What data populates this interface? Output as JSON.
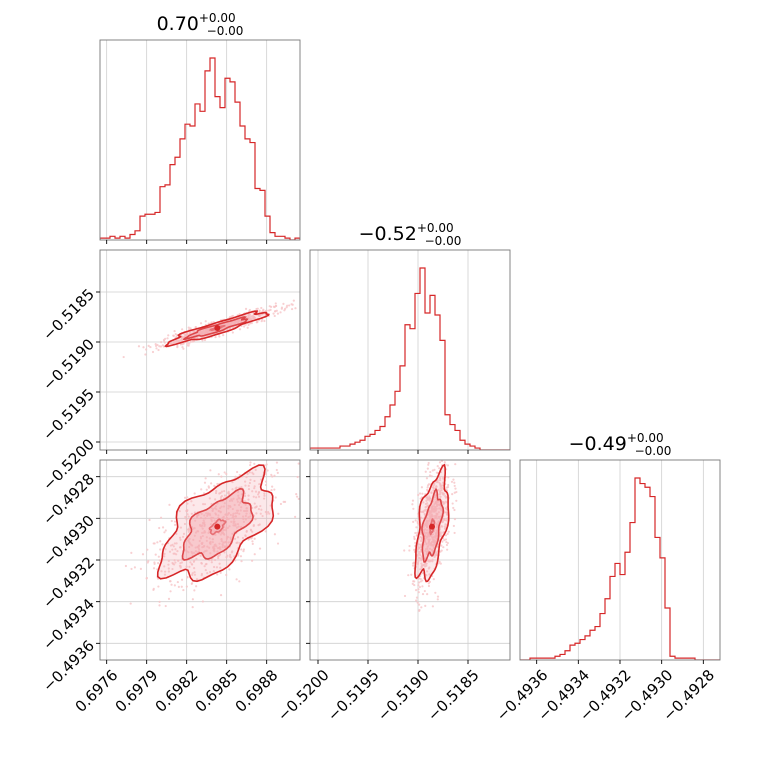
{
  "chart_data": {
    "type": "corner",
    "colors": {
      "series": "#d62728",
      "contour_fill": "#f3a5ab",
      "scatter": "#f6c4c7",
      "grid": "#cfcfcf",
      "frame": "#777777"
    },
    "grid": true,
    "parameters": [
      {
        "title": {
          "value": "0.70",
          "upper": "+0.00",
          "lower": "−0.00"
        },
        "range": [
          0.69755,
          0.69905
        ],
        "ticks": [
          0.6976,
          0.6979,
          0.6982,
          0.6985,
          0.6988
        ],
        "tick_labels": [
          "0.6976",
          "0.6979",
          "0.6982",
          "0.6985",
          "0.6988"
        ],
        "hist": {
          "start": 0.69755,
          "bin_width": 3.75e-05,
          "counts": [
            1,
            1,
            2,
            1,
            2,
            1,
            3,
            5,
            13,
            14,
            14,
            15,
            29,
            30,
            41,
            45,
            55,
            63,
            62,
            74,
            70,
            92,
            99,
            78,
            72,
            88,
            86,
            75,
            62,
            55,
            53,
            28,
            27,
            13,
            4,
            2,
            2,
            1,
            0,
            1
          ]
        }
      },
      {
        "title": {
          "value": "−0.52",
          "upper": "+0.00",
          "lower": "−0.00"
        },
        "range": [
          -0.52008,
          -0.51808
        ],
        "ticks": [
          -0.52,
          -0.5195,
          -0.519,
          -0.5185
        ],
        "tick_labels": [
          "−0.5200",
          "−0.5195",
          "−0.5190",
          "−0.5185"
        ],
        "hist": {
          "start": -0.52008,
          "bin_width": 5e-05,
          "counts": [
            1,
            1,
            1,
            1,
            1,
            1,
            2,
            2,
            3,
            4,
            5,
            7,
            8,
            10,
            12,
            17,
            23,
            30,
            43,
            64,
            62,
            80,
            93,
            70,
            79,
            69,
            56,
            18,
            13,
            10,
            5,
            3,
            2,
            1,
            0,
            0,
            0,
            0,
            0,
            0
          ]
        }
      },
      {
        "title": {
          "value": "−0.49",
          "upper": "+0.00",
          "lower": "−0.00"
        },
        "range": [
          -0.49368,
          -0.49272
        ],
        "ticks": [
          -0.4936,
          -0.4934,
          -0.4932,
          -0.493,
          -0.4928
        ],
        "tick_labels": [
          "−0.4936",
          "−0.4934",
          "−0.4932",
          "−0.4930",
          "−0.4928"
        ],
        "hist": {
          "start": -0.49368,
          "bin_width": 2.4e-05,
          "counts": [
            0,
            0,
            1,
            1,
            1,
            1,
            1,
            2,
            3,
            5,
            8,
            9,
            11,
            13,
            16,
            18,
            25,
            33,
            45,
            52,
            46,
            58,
            74,
            98,
            95,
            93,
            88,
            66,
            55,
            28,
            2,
            1,
            1,
            1,
            1,
            0,
            0,
            0,
            0,
            0
          ]
        }
      }
    ],
    "pairs": [
      {
        "x_param": 0,
        "y_param": 1,
        "rho": 0.93,
        "mean": [
          0.69843,
          -0.51886
        ],
        "sd": [
          0.00016,
          7e-05
        ]
      },
      {
        "x_param": 0,
        "y_param": 2,
        "rho": 0.58,
        "mean": [
          0.69843,
          -0.49304
        ],
        "sd": [
          0.00018,
          0.00011
        ]
      },
      {
        "x_param": 1,
        "y_param": 2,
        "rho": 0.52,
        "mean": [
          -0.51886,
          -0.49304
        ],
        "sd": [
          7e-05,
          0.00011
        ]
      }
    ]
  }
}
